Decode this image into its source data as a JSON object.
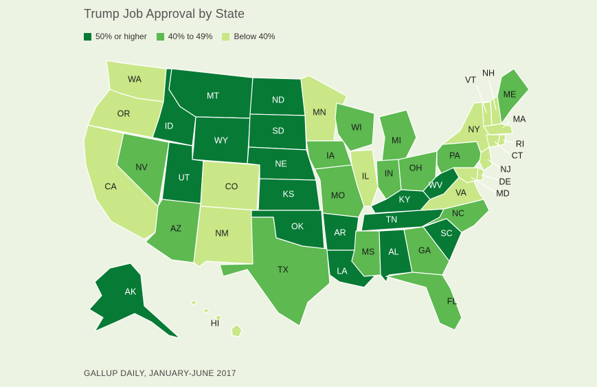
{
  "title": "Trump Job Approval by State",
  "source": "GALLUP DAILY, JANUARY-JUNE 2017",
  "legend": [
    {
      "label": "50% or higher",
      "color": "#077a35"
    },
    {
      "label": "40% to 49%",
      "color": "#5db950"
    },
    {
      "label": "Below 40%",
      "color": "#c9e787"
    }
  ],
  "categories": {
    "high": {
      "color": "#077a35",
      "text_color": "#ffffff"
    },
    "mid": {
      "color": "#5db950",
      "text_color": "#1a1a1a"
    },
    "low": {
      "color": "#c9e787",
      "text_color": "#1a1a1a"
    }
  },
  "states": [
    {
      "code": "WA",
      "cat": "low"
    },
    {
      "code": "OR",
      "cat": "low"
    },
    {
      "code": "CA",
      "cat": "low"
    },
    {
      "code": "ID",
      "cat": "high"
    },
    {
      "code": "NV",
      "cat": "mid"
    },
    {
      "code": "MT",
      "cat": "high"
    },
    {
      "code": "WY",
      "cat": "high"
    },
    {
      "code": "UT",
      "cat": "high"
    },
    {
      "code": "AZ",
      "cat": "mid"
    },
    {
      "code": "CO",
      "cat": "low"
    },
    {
      "code": "NM",
      "cat": "low"
    },
    {
      "code": "ND",
      "cat": "high"
    },
    {
      "code": "SD",
      "cat": "high"
    },
    {
      "code": "NE",
      "cat": "high"
    },
    {
      "code": "KS",
      "cat": "high"
    },
    {
      "code": "OK",
      "cat": "high"
    },
    {
      "code": "TX",
      "cat": "mid"
    },
    {
      "code": "MN",
      "cat": "low"
    },
    {
      "code": "IA",
      "cat": "mid"
    },
    {
      "code": "MO",
      "cat": "mid"
    },
    {
      "code": "AR",
      "cat": "high"
    },
    {
      "code": "LA",
      "cat": "high"
    },
    {
      "code": "WI",
      "cat": "mid"
    },
    {
      "code": "IL",
      "cat": "low"
    },
    {
      "code": "MI",
      "cat": "mid"
    },
    {
      "code": "IN",
      "cat": "mid"
    },
    {
      "code": "OH",
      "cat": "mid"
    },
    {
      "code": "KY",
      "cat": "high"
    },
    {
      "code": "TN",
      "cat": "high"
    },
    {
      "code": "MS",
      "cat": "mid"
    },
    {
      "code": "AL",
      "cat": "high"
    },
    {
      "code": "GA",
      "cat": "mid"
    },
    {
      "code": "FL",
      "cat": "mid"
    },
    {
      "code": "SC",
      "cat": "high"
    },
    {
      "code": "NC",
      "cat": "mid"
    },
    {
      "code": "VA",
      "cat": "low"
    },
    {
      "code": "WV",
      "cat": "high"
    },
    {
      "code": "PA",
      "cat": "mid"
    },
    {
      "code": "NY",
      "cat": "low"
    },
    {
      "code": "VT",
      "cat": "low"
    },
    {
      "code": "NH",
      "cat": "low"
    },
    {
      "code": "ME",
      "cat": "mid"
    },
    {
      "code": "MA",
      "cat": "low"
    },
    {
      "code": "RI",
      "cat": "low"
    },
    {
      "code": "CT",
      "cat": "low"
    },
    {
      "code": "NJ",
      "cat": "low"
    },
    {
      "code": "DE",
      "cat": "low"
    },
    {
      "code": "MD",
      "cat": "low"
    },
    {
      "code": "AK",
      "cat": "high"
    },
    {
      "code": "HI",
      "cat": "low"
    }
  ]
}
